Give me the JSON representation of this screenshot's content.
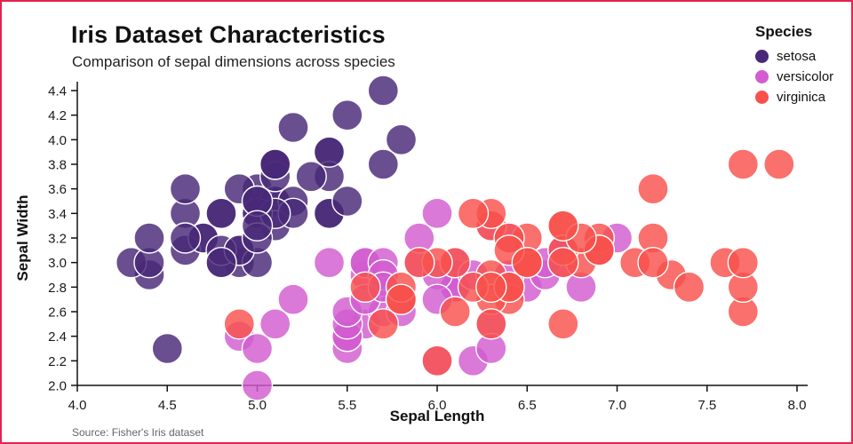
{
  "page": {
    "title": "Iris Dataset Characteristics",
    "subtitle": "Comparison of sepal dimensions across species",
    "source": "Source: Fisher's Iris dataset",
    "border_color": "#e5234f"
  },
  "legend": {
    "title": "Species",
    "items": [
      {
        "label": "setosa",
        "color": "#482878"
      },
      {
        "label": "versicolor",
        "color": "#d25cd0"
      },
      {
        "label": "virginica",
        "color": "#f8514c"
      }
    ]
  },
  "chart_data": {
    "type": "scatter",
    "title": "Iris Dataset Characteristics",
    "subtitle": "Comparison of sepal dimensions across species",
    "xlabel": "Sepal Length",
    "ylabel": "Sepal Width",
    "xlim": [
      4.0,
      8.0
    ],
    "ylim": [
      2.0,
      4.4
    ],
    "xticks": [
      4.0,
      4.5,
      5.0,
      5.5,
      6.0,
      6.5,
      7.0,
      7.5,
      8.0
    ],
    "yticks": [
      2.0,
      2.2,
      2.4,
      2.6,
      2.8,
      3.0,
      3.2,
      3.4,
      3.6,
      3.8,
      4.0,
      4.2,
      4.4
    ],
    "grid": false,
    "legend_position": "top-right",
    "marker_radius": 17,
    "marker_opacity": 0.82,
    "series": [
      {
        "name": "setosa",
        "color": "#482878",
        "points": [
          [
            5.1,
            3.5
          ],
          [
            4.9,
            3.0
          ],
          [
            4.7,
            3.2
          ],
          [
            4.6,
            3.1
          ],
          [
            5.0,
            3.6
          ],
          [
            5.4,
            3.9
          ],
          [
            4.6,
            3.4
          ],
          [
            5.0,
            3.4
          ],
          [
            4.4,
            2.9
          ],
          [
            4.9,
            3.1
          ],
          [
            5.4,
            3.7
          ],
          [
            4.8,
            3.4
          ],
          [
            4.8,
            3.0
          ],
          [
            4.3,
            3.0
          ],
          [
            5.8,
            4.0
          ],
          [
            5.7,
            4.4
          ],
          [
            5.4,
            3.9
          ],
          [
            5.1,
            3.5
          ],
          [
            5.7,
            3.8
          ],
          [
            5.1,
            3.8
          ],
          [
            5.4,
            3.4
          ],
          [
            5.1,
            3.7
          ],
          [
            4.6,
            3.6
          ],
          [
            5.1,
            3.3
          ],
          [
            4.8,
            3.4
          ],
          [
            5.0,
            3.0
          ],
          [
            5.0,
            3.4
          ],
          [
            5.2,
            3.5
          ],
          [
            5.2,
            3.4
          ],
          [
            4.7,
            3.2
          ],
          [
            4.8,
            3.1
          ],
          [
            5.4,
            3.4
          ],
          [
            5.2,
            4.1
          ],
          [
            5.5,
            4.2
          ],
          [
            4.9,
            3.1
          ],
          [
            5.0,
            3.2
          ],
          [
            5.5,
            3.5
          ],
          [
            4.9,
            3.6
          ],
          [
            4.4,
            3.0
          ],
          [
            5.1,
            3.4
          ],
          [
            5.0,
            3.5
          ],
          [
            4.5,
            2.3
          ],
          [
            4.4,
            3.2
          ],
          [
            5.0,
            3.5
          ],
          [
            5.1,
            3.8
          ],
          [
            4.8,
            3.0
          ],
          [
            5.1,
            3.8
          ],
          [
            4.6,
            3.2
          ],
          [
            5.3,
            3.7
          ],
          [
            5.0,
            3.3
          ]
        ]
      },
      {
        "name": "versicolor",
        "color": "#d25cd0",
        "points": [
          [
            7.0,
            3.2
          ],
          [
            6.4,
            3.2
          ],
          [
            6.9,
            3.1
          ],
          [
            5.5,
            2.3
          ],
          [
            6.5,
            2.8
          ],
          [
            5.7,
            2.8
          ],
          [
            6.3,
            3.3
          ],
          [
            4.9,
            2.4
          ],
          [
            6.6,
            2.9
          ],
          [
            5.2,
            2.7
          ],
          [
            5.0,
            2.0
          ],
          [
            5.9,
            3.0
          ],
          [
            6.0,
            2.2
          ],
          [
            6.1,
            2.9
          ],
          [
            5.6,
            2.9
          ],
          [
            6.7,
            3.1
          ],
          [
            5.6,
            3.0
          ],
          [
            5.8,
            2.7
          ],
          [
            6.2,
            2.2
          ],
          [
            5.6,
            2.5
          ],
          [
            5.9,
            3.2
          ],
          [
            6.1,
            2.8
          ],
          [
            6.3,
            2.5
          ],
          [
            6.1,
            2.8
          ],
          [
            6.4,
            2.9
          ],
          [
            6.6,
            3.0
          ],
          [
            6.8,
            2.8
          ],
          [
            6.7,
            3.0
          ],
          [
            6.0,
            2.9
          ],
          [
            5.7,
            2.6
          ],
          [
            5.5,
            2.4
          ],
          [
            5.5,
            2.4
          ],
          [
            5.8,
            2.7
          ],
          [
            6.0,
            2.7
          ],
          [
            5.4,
            3.0
          ],
          [
            6.0,
            3.4
          ],
          [
            6.7,
            3.1
          ],
          [
            6.3,
            2.3
          ],
          [
            5.6,
            3.0
          ],
          [
            5.5,
            2.5
          ],
          [
            5.5,
            2.6
          ],
          [
            6.1,
            3.0
          ],
          [
            5.8,
            2.6
          ],
          [
            5.0,
            2.3
          ],
          [
            5.6,
            2.7
          ],
          [
            5.7,
            3.0
          ],
          [
            5.7,
            2.9
          ],
          [
            6.2,
            2.9
          ],
          [
            5.1,
            2.5
          ],
          [
            5.7,
            2.8
          ]
        ]
      },
      {
        "name": "virginica",
        "color": "#f8514c",
        "points": [
          [
            6.3,
            3.3
          ],
          [
            5.8,
            2.7
          ],
          [
            7.1,
            3.0
          ],
          [
            6.3,
            2.9
          ],
          [
            6.5,
            3.0
          ],
          [
            7.6,
            3.0
          ],
          [
            4.9,
            2.5
          ],
          [
            7.3,
            2.9
          ],
          [
            6.7,
            2.5
          ],
          [
            7.2,
            3.6
          ],
          [
            6.5,
            3.2
          ],
          [
            6.4,
            2.7
          ],
          [
            6.8,
            3.0
          ],
          [
            5.7,
            2.5
          ],
          [
            5.8,
            2.8
          ],
          [
            6.4,
            3.2
          ],
          [
            6.5,
            3.0
          ],
          [
            7.7,
            3.8
          ],
          [
            7.7,
            2.6
          ],
          [
            6.0,
            2.2
          ],
          [
            6.9,
            3.2
          ],
          [
            5.6,
            2.8
          ],
          [
            7.7,
            2.8
          ],
          [
            6.3,
            2.7
          ],
          [
            6.7,
            3.3
          ],
          [
            7.2,
            3.2
          ],
          [
            6.2,
            2.8
          ],
          [
            6.1,
            3.0
          ],
          [
            6.4,
            2.8
          ],
          [
            7.2,
            3.0
          ],
          [
            7.4,
            2.8
          ],
          [
            7.9,
            3.8
          ],
          [
            6.4,
            2.8
          ],
          [
            6.3,
            2.8
          ],
          [
            6.1,
            2.6
          ],
          [
            7.7,
            3.0
          ],
          [
            6.3,
            3.4
          ],
          [
            6.4,
            3.1
          ],
          [
            6.0,
            3.0
          ],
          [
            6.9,
            3.1
          ],
          [
            6.7,
            3.1
          ],
          [
            6.9,
            3.1
          ],
          [
            5.8,
            2.7
          ],
          [
            6.8,
            3.2
          ],
          [
            6.7,
            3.3
          ],
          [
            6.7,
            3.0
          ],
          [
            6.3,
            2.5
          ],
          [
            6.5,
            3.0
          ],
          [
            6.2,
            3.4
          ],
          [
            5.9,
            3.0
          ]
        ]
      }
    ]
  }
}
